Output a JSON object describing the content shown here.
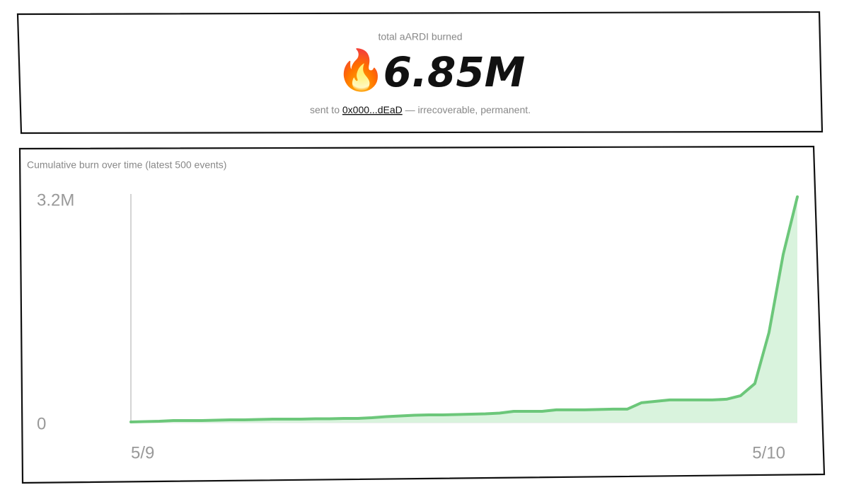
{
  "header": {
    "label": "total aARDI burned",
    "icon": "🔥",
    "amount": "6.85M",
    "sent_prefix": "sent to",
    "address": "0x000...dEaD",
    "sent_suffix": "— irrecoverable, permanent."
  },
  "chart_data": {
    "type": "area",
    "title": "Cumulative burn over time (latest 500 events)",
    "categories": [
      "5/9",
      null,
      null,
      null,
      null,
      null,
      null,
      null,
      null,
      null,
      null,
      null,
      null,
      null,
      null,
      null,
      null,
      null,
      null,
      null,
      null,
      null,
      null,
      null,
      null,
      null,
      null,
      null,
      null,
      null,
      null,
      null,
      null,
      null,
      null,
      null,
      null,
      null,
      null,
      null,
      null,
      null,
      null,
      null,
      null,
      null,
      null,
      "5/10"
    ],
    "values": [
      10000,
      15000,
      20000,
      30000,
      30000,
      30000,
      35000,
      40000,
      40000,
      45000,
      50000,
      50000,
      50000,
      55000,
      55000,
      60000,
      60000,
      70000,
      85000,
      95000,
      105000,
      110000,
      110000,
      115000,
      120000,
      125000,
      135000,
      160000,
      160000,
      160000,
      180000,
      180000,
      180000,
      185000,
      190000,
      190000,
      280000,
      300000,
      320000,
      320000,
      320000,
      320000,
      330000,
      380000,
      550000,
      1270000,
      2370000,
      3180000
    ],
    "color": "#6cc77a",
    "area_color": "#d9f3dd",
    "ylim": [
      0,
      3200000
    ],
    "yticks": [
      0,
      {
        "value": 3200000,
        "label": "3.2M"
      }
    ],
    "grid": false
  }
}
